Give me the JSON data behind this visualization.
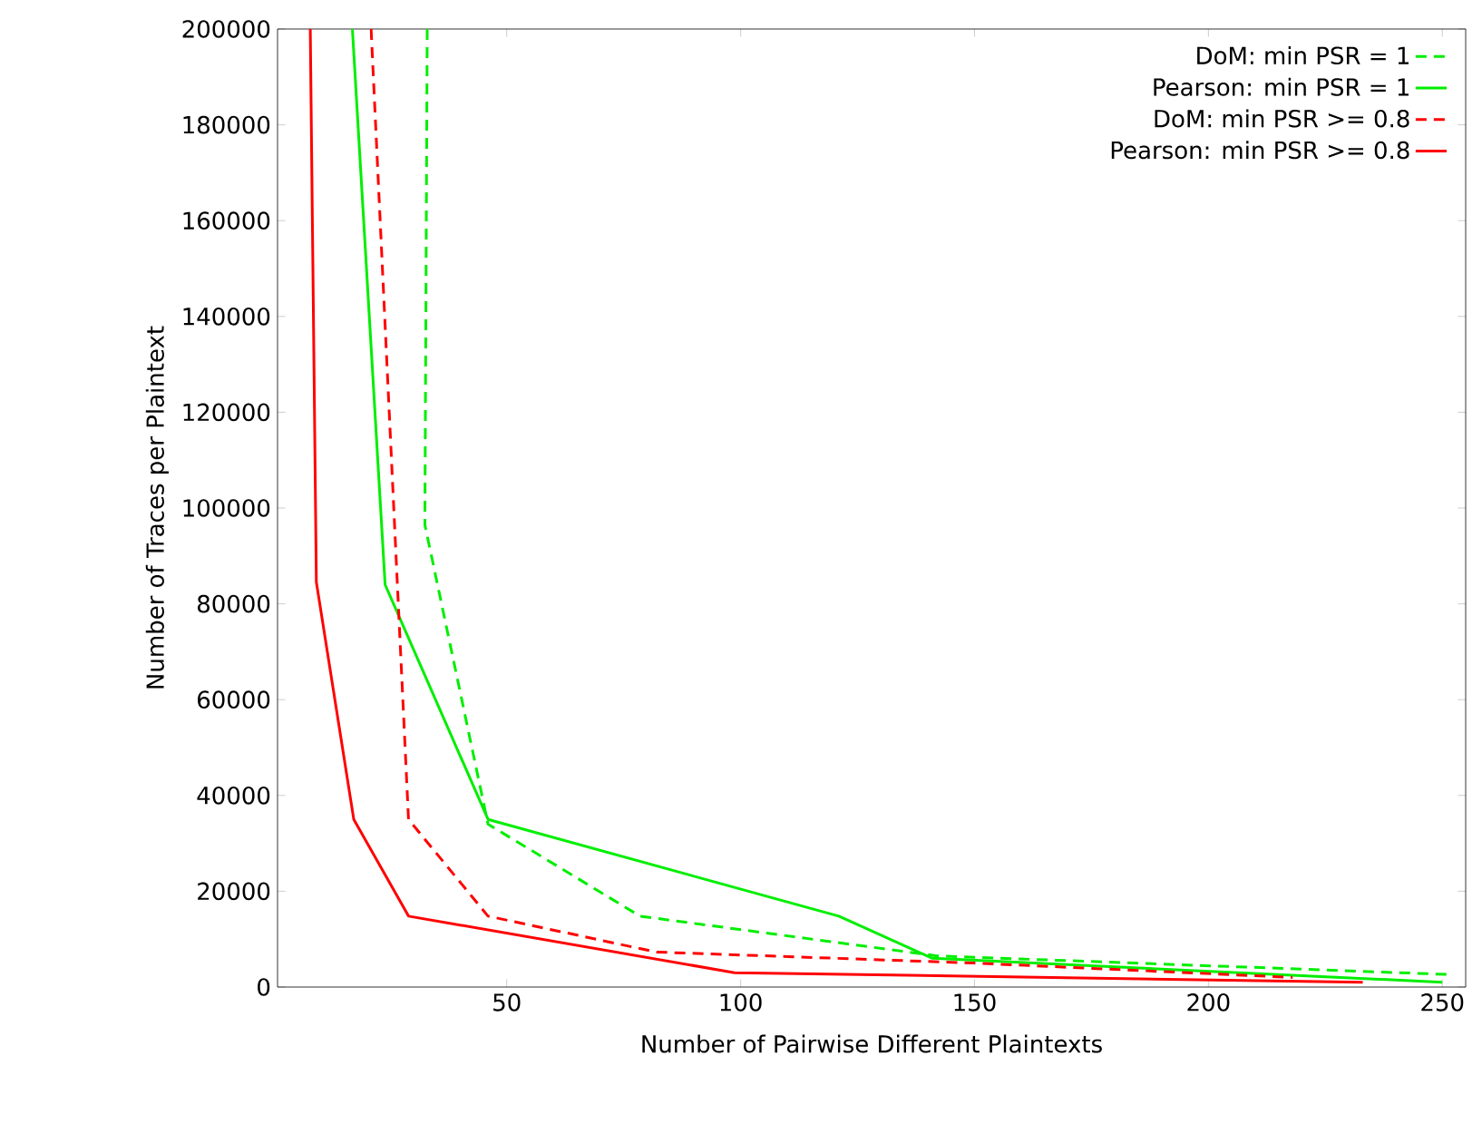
{
  "chart_data": {
    "type": "line",
    "xlabel": "Number of Pairwise Different Plaintexts",
    "ylabel": "Number of Traces per Plaintext",
    "xlim": [
      1,
      255
    ],
    "ylim": [
      0,
      200000
    ],
    "xticks": [
      50,
      100,
      150,
      200,
      250
    ],
    "yticks": [
      0,
      20000,
      40000,
      60000,
      80000,
      100000,
      120000,
      140000,
      160000,
      180000,
      200000
    ],
    "legend": "top right",
    "grid": false,
    "series": [
      {
        "name": "DoM: min PSR = 1",
        "color": "#00ee00",
        "line_style": "dashed",
        "x": [
          33,
          32.5,
          46,
          78.5,
          142,
          252
        ],
        "values": [
          200000,
          96500,
          34000,
          14800,
          6500,
          2600
        ]
      },
      {
        "name": "Pearson: min PSR = 1",
        "color": "#00ee00",
        "line_style": "solid",
        "x": [
          17,
          24,
          46,
          121,
          141,
          250
        ],
        "values": [
          200000,
          84000,
          35000,
          14800,
          6000,
          1000
        ]
      },
      {
        "name": "DoM: min PSR >= 0.8",
        "color": "#ff0000",
        "line_style": "dashed",
        "x": [
          21,
          29,
          46,
          82,
          150,
          218
        ],
        "values": [
          200000,
          35000,
          14800,
          7300,
          5000,
          2000
        ]
      },
      {
        "name": "Pearson: min PSR >= 0.8",
        "color": "#ff0000",
        "line_style": "solid",
        "x": [
          8,
          9.3,
          17.3,
          29,
          98.7,
          233
        ],
        "values": [
          200000,
          84500,
          35000,
          14800,
          3000,
          1000
        ]
      }
    ]
  }
}
